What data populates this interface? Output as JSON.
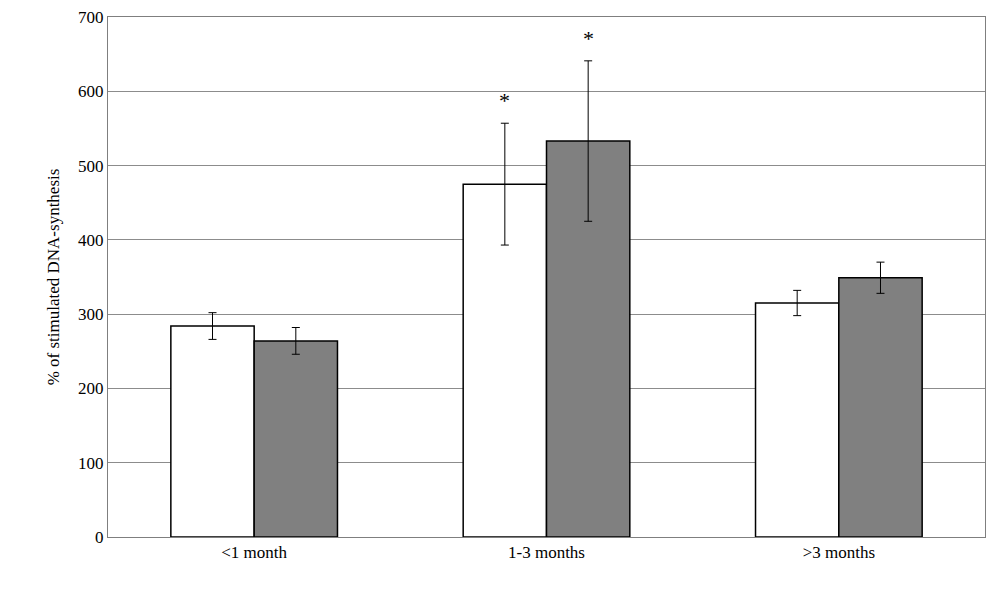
{
  "chart_data": {
    "type": "bar",
    "y_label": "% of stimulated DNA-synthesis",
    "categories": [
      "<1 month",
      "1-3 months",
      ">3 months"
    ],
    "series": [
      {
        "color": "#ffffff",
        "values": [
          284,
          475,
          315
        ],
        "errors": [
          18,
          82,
          17
        ]
      },
      {
        "color": "#808080",
        "values": [
          264,
          533,
          349
        ],
        "errors": [
          18,
          108,
          21
        ]
      }
    ],
    "annotations": [
      {
        "text": "*",
        "category": "1-3 months",
        "series": 0
      },
      {
        "text": "*",
        "category": "1-3 months",
        "series": 1
      }
    ],
    "ylim": [
      0,
      700
    ],
    "yticks": [
      0,
      100,
      200,
      300,
      400,
      500,
      600,
      700
    ],
    "grid": true
  }
}
